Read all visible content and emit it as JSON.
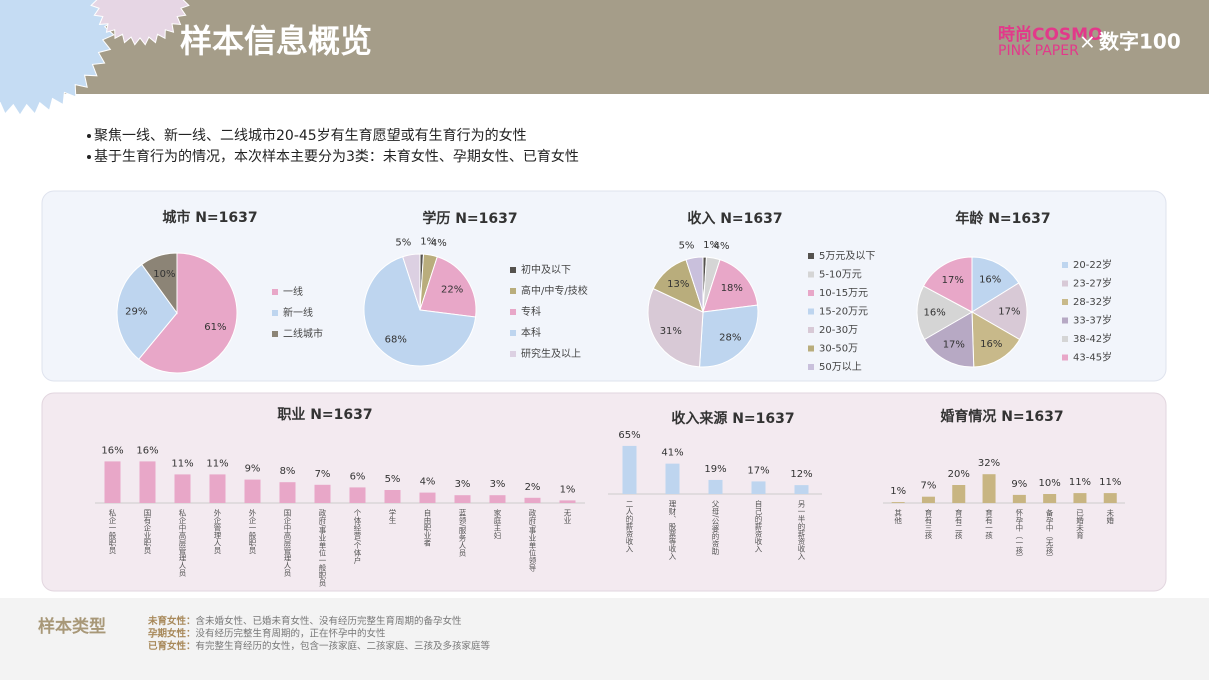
{
  "header": {
    "title": "样本信息概览",
    "logo_top": "時尚COSMO",
    "logo_bottom": "PINK PAPER",
    "logo_x": "×",
    "logo_right": "数字100"
  },
  "bullets": [
    "聚焦一线、新一线、二线城市20-45岁有生育愿望或有生育行为的女性",
    "基于生育行为的情况，本次样本主要分为3类：未育女性、孕期女性、已育女性"
  ],
  "chart_data": [
    {
      "type": "pie",
      "title": "城市 N=1637",
      "categories": [
        "一线",
        "新一线",
        "二线城市"
      ],
      "values": [
        61,
        29,
        10
      ],
      "value_labels": [
        "61%",
        "29%",
        "10%"
      ],
      "colors": [
        "#e8a7c8",
        "#bed5ef",
        "#8c8476"
      ]
    },
    {
      "type": "pie",
      "title": "学历 N=1637",
      "categories": [
        "初中及以下",
        "高中/中专/技校",
        "专科",
        "本科",
        "研究生及以上"
      ],
      "values": [
        1,
        4,
        22,
        68,
        5
      ],
      "value_labels": [
        "1%",
        "4%",
        "22%",
        "68%",
        "5%"
      ],
      "colors": [
        "#55524e",
        "#b9ad7c",
        "#e8a7c8",
        "#bed5ef",
        "#dcd0e2"
      ]
    },
    {
      "type": "pie",
      "title": "收入 N=1637",
      "categories": [
        "5万元及以下",
        "5-10万元",
        "10-15万元",
        "15-20万元",
        "20-30万",
        "30-50万",
        "50万以上"
      ],
      "values": [
        1,
        4,
        18,
        28,
        31,
        13,
        5
      ],
      "value_labels": [
        "1%",
        "4%",
        "18%",
        "28%",
        "31%",
        "13%",
        "5%"
      ],
      "colors": [
        "#55524e",
        "#d5d5d5",
        "#e8a7c8",
        "#bed5ef",
        "#d8c9d6",
        "#b9ad7c",
        "#c9c0dc"
      ]
    },
    {
      "type": "pie",
      "title": "年龄 N=1637",
      "categories": [
        "20-22岁",
        "23-27岁",
        "28-32岁",
        "33-37岁",
        "38-42岁",
        "43-45岁"
      ],
      "values": [
        16,
        17,
        16,
        17,
        16,
        17
      ],
      "value_labels": [
        "16%",
        "17%",
        "16%",
        "17%",
        "16%",
        "17%"
      ],
      "colors": [
        "#bed5ef",
        "#d8c9d6",
        "#c8b98a",
        "#b7a9c4",
        "#d5d5d5",
        "#e8a7c8"
      ]
    },
    {
      "type": "bar",
      "title": "职业 N=1637",
      "categories": [
        "私企一般职员",
        "国有企业职员",
        "私企中高层管理人员",
        "外企管理人员",
        "外企一般职员",
        "国企中高层管理人员",
        "政府/事业单位一般职员",
        "个体经营/个体户",
        "学生",
        "自由职业者",
        "蓝领/服务人员",
        "家庭主妇",
        "政府/事业单位领导",
        "无业"
      ],
      "values": [
        16,
        16,
        11,
        11,
        9,
        8,
        7,
        6,
        5,
        4,
        3,
        3,
        2,
        1
      ],
      "value_labels": [
        "16%",
        "16%",
        "11%",
        "11%",
        "9%",
        "8%",
        "7%",
        "6%",
        "5%",
        "4%",
        "3%",
        "3%",
        "2%",
        "1%"
      ],
      "color": "#e8a7c8"
    },
    {
      "type": "bar",
      "title": "收入来源 N=1637",
      "categories": [
        "二人的薪资收入",
        "理财、股票等收入",
        "父母/公婆的资助",
        "自己的薪资收入",
        "另一半的薪资收入"
      ],
      "values": [
        65,
        41,
        19,
        17,
        12
      ],
      "value_labels": [
        "65%",
        "41%",
        "19%",
        "17%",
        "12%"
      ],
      "color": "#bed5ef"
    },
    {
      "type": "bar",
      "title": "婚育情况 N=1637",
      "categories": [
        "其他",
        "育有三孩",
        "育有二孩",
        "育有一孩",
        "怀孕中（一孩）",
        "备孕中（无孩）",
        "已婚未育",
        "未婚"
      ],
      "values": [
        1,
        7,
        20,
        32,
        9,
        10,
        11,
        11
      ],
      "value_labels": [
        "1%",
        "7%",
        "20%",
        "32%",
        "9%",
        "10%",
        "11%",
        "11%"
      ],
      "color": "#c8b582"
    }
  ],
  "footer": {
    "label": "样本类型",
    "items": [
      {
        "term": "未育女性：",
        "text": "含未婚女性、已婚未育女性、没有经历完整生育周期的备孕女性"
      },
      {
        "term": "孕期女性：",
        "text": "没有经历完整生育周期的，正在怀孕中的女性"
      },
      {
        "term": "已育女性：",
        "text": "有完整生育经历的女性，包含一孩家庭、二孩家庭、三孩及多孩家庭等"
      }
    ]
  }
}
